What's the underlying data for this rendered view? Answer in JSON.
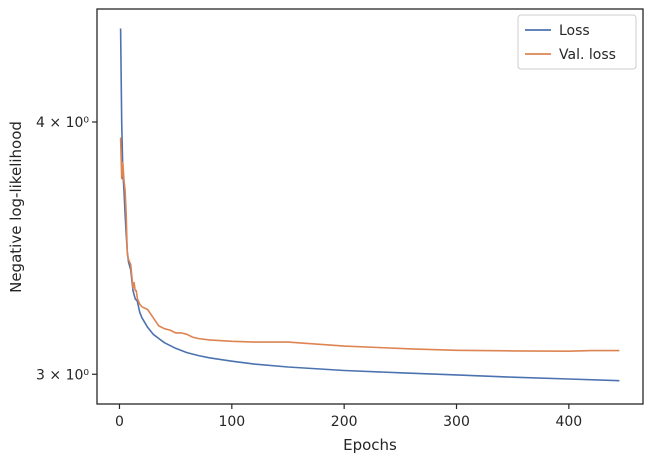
{
  "chart_data": {
    "type": "line",
    "title": "",
    "xlabel": "Epochs",
    "ylabel": "Negative log-likelihood",
    "xlim": [
      -20,
      466
    ],
    "ylim": [
      2.9,
      4.55
    ],
    "yscale": "log",
    "grid": false,
    "legend_position": "top-right",
    "x_ticks": [
      {
        "value": 0,
        "label": "0"
      },
      {
        "value": 100,
        "label": "100"
      },
      {
        "value": 200,
        "label": "200"
      },
      {
        "value": 300,
        "label": "300"
      },
      {
        "value": 400,
        "label": "400"
      }
    ],
    "y_ticks": [
      {
        "value": 3,
        "label": "3 × 10⁰"
      },
      {
        "value": 4,
        "label": "4 × 10⁰"
      }
    ],
    "series": [
      {
        "name": "Loss",
        "color": "#4c72b0",
        "x": [
          1,
          2,
          3,
          4,
          5,
          6,
          7,
          8,
          10,
          12,
          14,
          16,
          18,
          20,
          25,
          30,
          35,
          40,
          50,
          60,
          70,
          80,
          100,
          120,
          150,
          200,
          250,
          300,
          350,
          400,
          445
        ],
        "y": [
          4.45,
          4.0,
          3.78,
          3.7,
          3.6,
          3.52,
          3.45,
          3.41,
          3.38,
          3.3,
          3.27,
          3.26,
          3.22,
          3.2,
          3.165,
          3.14,
          3.125,
          3.11,
          3.09,
          3.075,
          3.065,
          3.057,
          3.045,
          3.035,
          3.025,
          3.013,
          3.005,
          2.998,
          2.99,
          2.984,
          2.978
        ]
      },
      {
        "name": "Val. loss",
        "color": "#dd8452",
        "x": [
          1,
          2,
          3,
          4,
          5,
          6,
          7,
          8,
          10,
          12,
          13,
          14,
          15,
          16,
          18,
          20,
          25,
          30,
          35,
          40,
          45,
          50,
          55,
          60,
          65,
          70,
          80,
          100,
          120,
          150,
          175,
          200,
          230,
          260,
          300,
          350,
          400,
          420,
          445
        ],
        "y": [
          3.93,
          3.75,
          3.82,
          3.74,
          3.7,
          3.6,
          3.44,
          3.42,
          3.4,
          3.31,
          3.33,
          3.3,
          3.3,
          3.27,
          3.25,
          3.24,
          3.23,
          3.2,
          3.17,
          3.16,
          3.155,
          3.145,
          3.145,
          3.14,
          3.13,
          3.125,
          3.12,
          3.115,
          3.112,
          3.112,
          3.105,
          3.098,
          3.093,
          3.088,
          3.083,
          3.081,
          3.08,
          3.082,
          3.082
        ]
      }
    ]
  }
}
